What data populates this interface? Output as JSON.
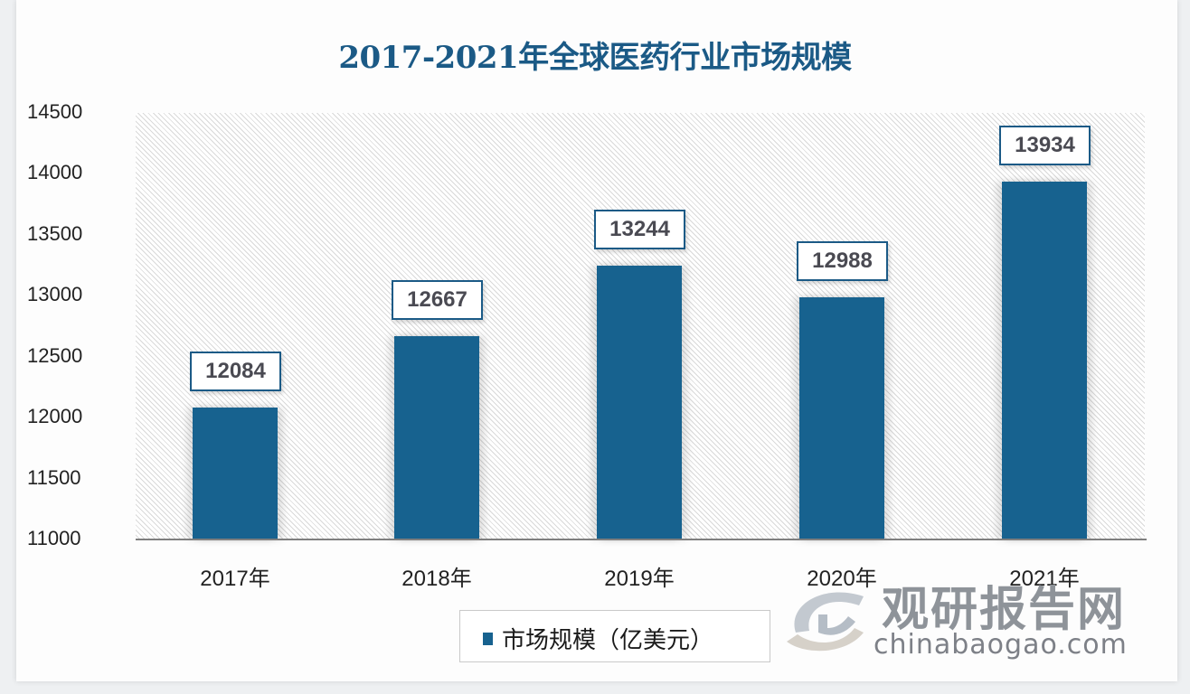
{
  "title": "2017-2021年全球医药行业市场规模",
  "y_ticks": [
    "14500",
    "14000",
    "13500",
    "13000",
    "12500",
    "12000",
    "11500",
    "11000"
  ],
  "bars": [
    {
      "category": "2017年",
      "value": 12084,
      "label": "12084"
    },
    {
      "category": "2018年",
      "value": 12667,
      "label": "12667"
    },
    {
      "category": "2019年",
      "value": 13244,
      "label": "13244"
    },
    {
      "category": "2020年",
      "value": 12988,
      "label": "12988"
    },
    {
      "category": "2021年",
      "value": 13934,
      "label": "13934"
    }
  ],
  "legend": {
    "label": "市场规模（亿美元）",
    "color": "#17628f"
  },
  "watermark": {
    "cn": "观研报告网",
    "en": "chinabaogao.com"
  },
  "colors": {
    "bar": "#17628f",
    "title": "#1b5a86",
    "label_border": "#1b5a86"
  },
  "chart_data": {
    "type": "bar",
    "title": "2017-2021年全球医药行业市场规模",
    "categories": [
      "2017年",
      "2018年",
      "2019年",
      "2020年",
      "2021年"
    ],
    "series": [
      {
        "name": "市场规模（亿美元）",
        "values": [
          12084,
          12667,
          13244,
          12988,
          13934
        ]
      }
    ],
    "values": [
      12084,
      12667,
      13244,
      12988,
      13934
    ],
    "xlabel": "",
    "ylabel": "",
    "ylim": [
      11000,
      14500
    ],
    "yticks": [
      11000,
      11500,
      12000,
      12500,
      13000,
      13500,
      14000,
      14500
    ],
    "grid": false,
    "legend_position": "bottom",
    "data_labels": true
  }
}
